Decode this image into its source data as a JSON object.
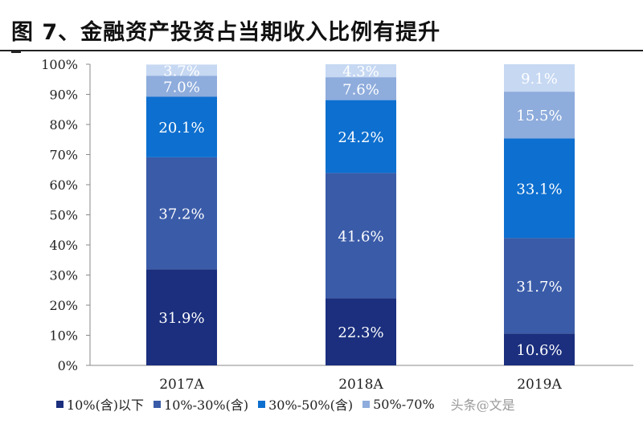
{
  "title": "图 7、金融资产投资占当期收入比例有提升",
  "colors": {
    "band_0_10": "#1b2f7e",
    "band_10_30": "#3a5ba8",
    "band_30_50": "#0d6fcf",
    "band_50_plus": "#8eacdc",
    "band_top": "#c6d8f2",
    "label_light": "#ffffff",
    "label_dark": "#ffffff",
    "axis": "#8a8a8a"
  },
  "legend": [
    "10%(含)以下",
    "10%-30%(含)",
    "30%-50%(含)",
    "50%-70%"
  ],
  "watermark": "头条@文是",
  "chart_data": {
    "type": "bar",
    "stacked": true,
    "categories": [
      "2017A",
      "2018A",
      "2019A"
    ],
    "ylim": [
      0,
      100
    ],
    "yticks": [
      "0%",
      "10%",
      "20%",
      "30%",
      "40%",
      "50%",
      "60%",
      "70%",
      "80%",
      "90%",
      "100%"
    ],
    "series": [
      {
        "name": "10%(含)以下",
        "values": [
          31.9,
          22.3,
          10.6
        ],
        "labels": [
          "31.9%",
          "22.3%",
          "10.6%"
        ]
      },
      {
        "name": "10%-30%(含)",
        "values": [
          37.2,
          41.6,
          31.7
        ],
        "labels": [
          "37.2%",
          "41.6%",
          "31.7%"
        ]
      },
      {
        "name": "30%-50%(含)",
        "values": [
          20.1,
          24.2,
          33.1
        ],
        "labels": [
          "20.1%",
          "24.2%",
          "33.1%"
        ]
      },
      {
        "name": "50%-70%",
        "values": [
          7.0,
          7.6,
          15.5
        ],
        "labels": [
          "7.0%",
          "7.6%",
          "15.5%"
        ]
      },
      {
        "name": "",
        "values": [
          3.7,
          4.3,
          9.1
        ],
        "labels": [
          "3.7%",
          "4.3%",
          "9.1%"
        ]
      }
    ]
  }
}
